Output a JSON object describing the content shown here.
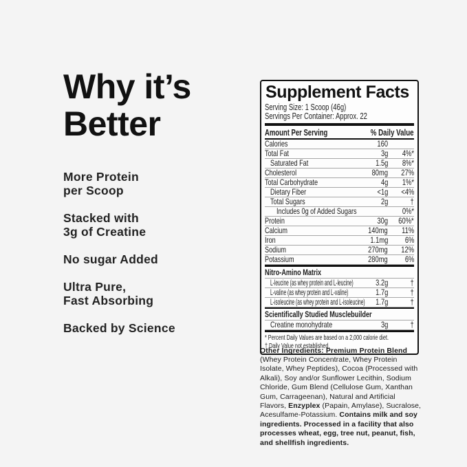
{
  "colors": {
    "background": "#f4f4f4",
    "panel_background": "#fdfdfd",
    "text": "#1a1a1a",
    "border": "#111111",
    "hairline": "#a6a6a6"
  },
  "left": {
    "heading": "Why it’s\nBetter",
    "benefits": [
      "More Protein\nper Scoop",
      "Stacked with\n3g of Creatine",
      "No sugar Added",
      "Ultra Pure,\nFast Absorbing",
      "Backed by Science"
    ]
  },
  "panel": {
    "title": "Supplement Facts",
    "serving_size": "Serving Size: 1 Scoop (46g)",
    "servings_per_container": "Servings Per Container: Approx. 22",
    "columns": {
      "amount": "Amount Per Serving",
      "daily_value": "% Daily Value"
    },
    "rows": [
      {
        "name": "Calories",
        "amount": "160",
        "dv": "",
        "indent": 0
      },
      {
        "name": "Total Fat",
        "amount": "3g",
        "dv": "4%*",
        "indent": 0
      },
      {
        "name": "Saturated Fat",
        "amount": "1.5g",
        "dv": "8%*",
        "indent": 1
      },
      {
        "name": "Cholesterol",
        "amount": "80mg",
        "dv": "27%",
        "indent": 0
      },
      {
        "name": "Total Carbohydrate",
        "amount": "4g",
        "dv": "1%*",
        "indent": 0
      },
      {
        "name": "Dietary Fiber",
        "amount": "<1g",
        "dv": "<4%",
        "indent": 1
      },
      {
        "name": "Total Sugars",
        "amount": "2g",
        "dv": "†",
        "indent": 1
      },
      {
        "name": "Includes 0g of Added Sugars",
        "amount": "",
        "dv": "0%*",
        "indent": 2
      },
      {
        "name": "Protein",
        "amount": "30g",
        "dv": "60%*",
        "indent": 0
      },
      {
        "name": "Calcium",
        "amount": "140mg",
        "dv": "11%",
        "indent": 0
      },
      {
        "name": "Iron",
        "amount": "1.1mg",
        "dv": "6%",
        "indent": 0
      },
      {
        "name": "Sodium",
        "amount": "270mg",
        "dv": "12%",
        "indent": 0
      },
      {
        "name": "Potassium",
        "amount": "280mg",
        "dv": "6%",
        "indent": 0
      }
    ],
    "sections": [
      {
        "header": "Nitro-Amino Matrix",
        "rows": [
          {
            "name": "L-leucine (as whey protein and L-leucine)",
            "amount": "3.2g",
            "dv": "†",
            "indent": 1,
            "narrow": true
          },
          {
            "name": "L-valine (as whey protein and L-valine)",
            "amount": "1.7g",
            "dv": "†",
            "indent": 1,
            "narrow": true
          },
          {
            "name": "L-isoleucine (as whey protein and L-isoleucine)",
            "amount": "1.7g",
            "dv": "†",
            "indent": 1,
            "narrow": true
          }
        ]
      },
      {
        "header": "Scientifically Studied Musclebuilder",
        "rows": [
          {
            "name": "Creatine monohydrate",
            "amount": "3g",
            "dv": "†",
            "indent": 1
          }
        ]
      }
    ],
    "footnotes": [
      "* Percent Daily Values are based on a 2,000 calorie diet.",
      "† Daily Value not established."
    ]
  },
  "other_ingredients": {
    "segments": [
      {
        "text": "Other Ingredients: Premium Protein Blend",
        "bold": true
      },
      {
        "text": " (Whey Protein Concentrate, Whey Protein Isolate, Whey Peptides), Cocoa (Processed with Alkali), Soy and/or Sunflower Lecithin, Sodium Chloride, Gum Blend (Cellulose Gum, Xanthan Gum, Carrageenan), Natural and Artificial Flavors, ",
        "bold": false
      },
      {
        "text": "Enzyplex",
        "bold": true
      },
      {
        "text": " (Papain, Amylase), Sucralose, Acesulfame-Potassium. ",
        "bold": false
      },
      {
        "text": "Contains milk and soy ingredients. Processed in a facility that also processes wheat, egg, tree nut, peanut, fish, and shellfish ingredients.",
        "bold": true
      }
    ]
  }
}
